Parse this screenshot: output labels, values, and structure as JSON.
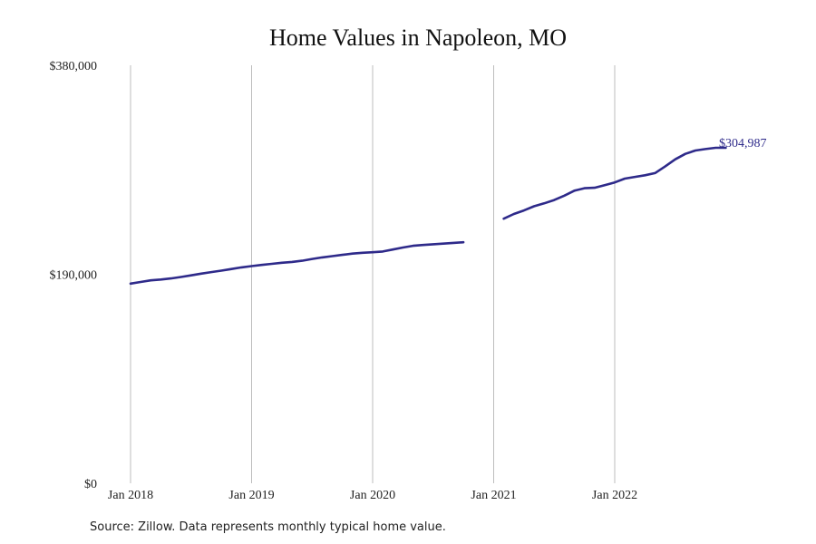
{
  "chart_data": {
    "type": "line",
    "title": "Home Values in Napoleon, MO",
    "xlabel": "",
    "ylabel": "",
    "ylim": [
      0,
      380000
    ],
    "y_ticks": [
      {
        "value": 0,
        "label": "$0"
      },
      {
        "value": 190000,
        "label": "$190,000"
      },
      {
        "value": 380000,
        "label": "$380,000"
      }
    ],
    "x_ticks": [
      {
        "value": "2018-01",
        "label": "Jan 2018"
      },
      {
        "value": "2019-01",
        "label": "Jan 2019"
      },
      {
        "value": "2020-01",
        "label": "Jan 2020"
      },
      {
        "value": "2021-01",
        "label": "Jan 2021"
      },
      {
        "value": "2022-01",
        "label": "Jan 2022"
      }
    ],
    "xlim": [
      "2018-01",
      "2022-12"
    ],
    "grid": "vertical",
    "line_color": "#2e2a8a",
    "end_label": "$304,987",
    "segments": [
      {
        "dates": [
          "2018-01",
          "2018-02",
          "2018-03",
          "2018-04",
          "2018-05",
          "2018-06",
          "2018-07",
          "2018-08",
          "2018-09",
          "2018-10",
          "2018-11",
          "2018-12",
          "2019-01",
          "2019-02",
          "2019-03",
          "2019-04",
          "2019-05",
          "2019-06",
          "2019-07",
          "2019-08",
          "2019-09",
          "2019-10",
          "2019-11",
          "2019-12",
          "2020-01",
          "2020-02",
          "2020-03",
          "2020-04",
          "2020-05",
          "2020-06",
          "2020-07",
          "2020-08",
          "2020-09",
          "2020-10"
        ],
        "values": [
          181500,
          183000,
          184500,
          185200,
          186200,
          187500,
          189000,
          190600,
          192000,
          193300,
          194800,
          196300,
          197400,
          198500,
          199500,
          200500,
          201200,
          202300,
          203900,
          205300,
          206500,
          207600,
          208800,
          209500,
          210000,
          210700,
          212500,
          214300,
          215900,
          216600,
          217300,
          217900,
          218500,
          219100
        ]
      },
      {
        "dates": [
          "2021-02",
          "2021-03",
          "2021-04",
          "2021-05",
          "2021-06",
          "2021-07",
          "2021-08",
          "2021-09",
          "2021-10",
          "2021-11",
          "2021-12",
          "2022-01",
          "2022-02",
          "2022-03",
          "2022-04",
          "2022-05",
          "2022-06",
          "2022-07",
          "2022-08",
          "2022-09",
          "2022-10",
          "2022-11",
          "2022-12"
        ],
        "values": [
          240500,
          244800,
          248000,
          251800,
          254500,
          257500,
          261500,
          266000,
          268200,
          268600,
          271000,
          273500,
          277000,
          278500,
          280000,
          282000,
          288000,
          294500,
          299500,
          302500,
          303800,
          304987,
          304987
        ]
      }
    ],
    "note": "Source: Zillow. Data represents monthly typical home value."
  }
}
